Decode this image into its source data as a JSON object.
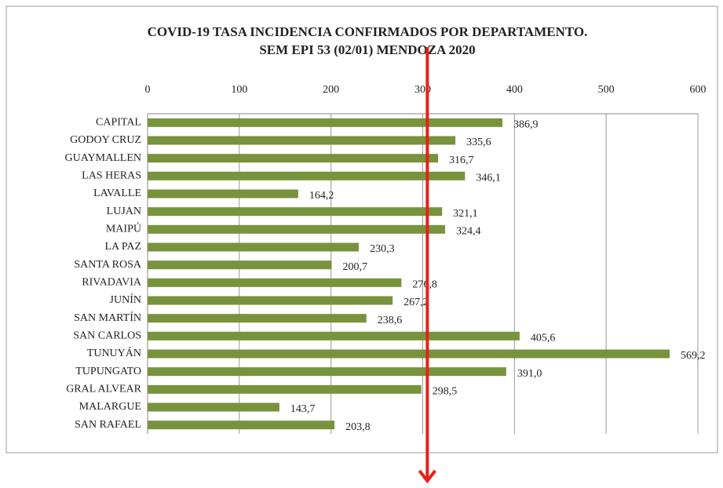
{
  "chart_data": {
    "type": "barh",
    "title": "COVID-19 TASA INCIDENCIA CONFIRMADOS POR DEPARTAMENTO.",
    "subtitle": "SEM EPI 53 (02/01) MENDOZA 2020",
    "categories": [
      "CAPITAL",
      "GODOY CRUZ",
      "GUAYMALLEN",
      "LAS HERAS",
      "LAVALLE",
      "LUJAN",
      "MAIPÚ",
      "LA PAZ",
      "SANTA ROSA",
      "RIVADAVIA",
      "JUNÍN",
      "SAN MARTÍN",
      "SAN CARLOS",
      "TUNUYÁN",
      "TUPUNGATO",
      "GRAL ALVEAR",
      "MALARGUE",
      "SAN RAFAEL"
    ],
    "values": [
      386.9,
      335.6,
      316.7,
      346.1,
      164.2,
      321.1,
      324.4,
      230.3,
      200.7,
      276.8,
      267.2,
      238.6,
      405.6,
      569.2,
      391.0,
      298.5,
      143.7,
      203.8
    ],
    "value_labels": [
      "386,9",
      "335,6",
      "316,7",
      "346,1",
      "164,2",
      "321,1",
      "324,4",
      "230,3",
      "200,7",
      "276,8",
      "267,2",
      "238,6",
      "405,6",
      "569,2",
      "391,0",
      "298,5",
      "143,7",
      "203,8"
    ],
    "color": "#77933c",
    "xlim": [
      0,
      600
    ],
    "xticks": [
      0,
      100,
      200,
      300,
      400,
      500,
      600
    ],
    "grid": true,
    "annotation_line": {
      "value": 305,
      "color": "#e8201a"
    }
  }
}
